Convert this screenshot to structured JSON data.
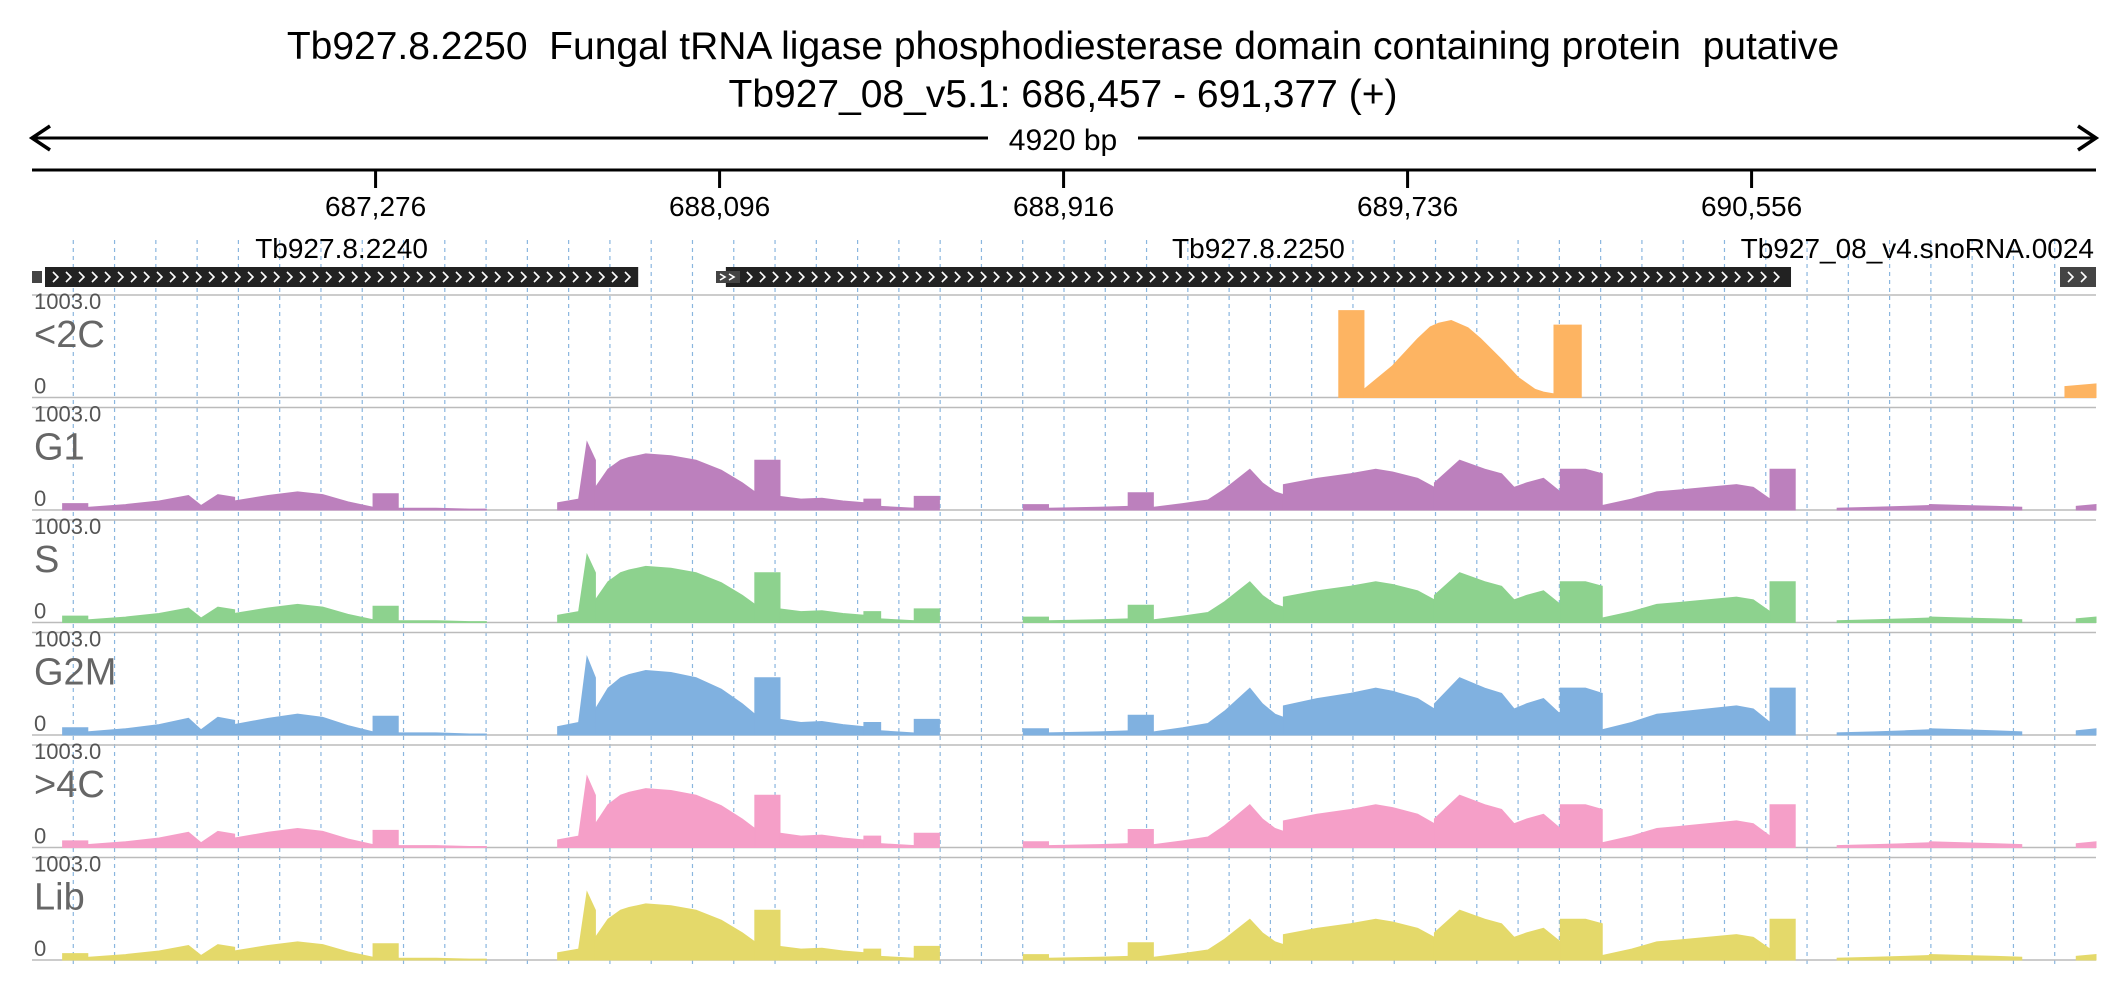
{
  "header": {
    "title": "Tb927.8.2250  Fungal tRNA ligase phosphodiesterase domain containing protein  putative",
    "location": "Tb927_08_v5.1: 686,457 - 691,377 (+)"
  },
  "ruler": {
    "span_label": "4920 bp",
    "ticks": [
      {
        "position": 687276,
        "label": "687,276"
      },
      {
        "position": 688096,
        "label": "688,096"
      },
      {
        "position": 688916,
        "label": "688,916"
      },
      {
        "position": 689736,
        "label": "689,736"
      },
      {
        "position": 690556,
        "label": "690,556"
      }
    ]
  },
  "genes": [
    {
      "name": "Tb927.8.2240",
      "start": 686486,
      "end": 687902,
      "strand": "+",
      "color": "#222222"
    },
    {
      "name": "Tb927.8.2250",
      "start": 688111,
      "end": 690650,
      "strand": "+",
      "color": "#222222"
    },
    {
      "name": "Tb927_08_v4.snoRNA.0024",
      "start": 691303,
      "end": 691377,
      "strand": "+",
      "color": "#444444"
    }
  ],
  "colors": {
    "grid": "#8ab6df",
    "track_border": "#bbbbbb",
    "axis_text": "#555555",
    "overflow_marker": "#8b2232"
  },
  "chart_data": {
    "type": "area",
    "region": {
      "chrom": "Tb927_08_v5.1",
      "start": 686457,
      "end": 691377
    },
    "ylim": [
      0,
      1003.0
    ],
    "ymax_label": "1003.0",
    "ymin_label": "0",
    "series": [
      {
        "name": "<2C",
        "color": "#fdb462",
        "segments": [
          {
            "x": [
              689572,
              689632
            ],
            "y": [
              955,
              955
            ]
          },
          {
            "x": [
              689632,
              689700,
              689760,
              689790,
              689810,
              689840,
              689880,
              689910,
              689960,
              690000,
              690040,
              690060,
              690085
            ],
            "y": [
              90,
              350,
              650,
              780,
              820,
              850,
              770,
              650,
              420,
              220,
              90,
              60,
              40
            ]
          },
          {
            "x": [
              690085,
              690150
            ],
            "y": [
              800,
              800
            ]
          },
          {
            "x": [
              691300,
              691377
            ],
            "y": [
              120,
              150
            ]
          }
        ]
      },
      {
        "name": "G1",
        "color": "#bc80bd",
        "segments": [
          {
            "x": [
              686630,
              686680
            ],
            "y": [
              50,
              50
            ]
          },
          {
            "x": [
              686680,
              686760,
              686840,
              686880
            ],
            "y": [
              30,
              60,
              90,
              180
            ]
          },
          {
            "x": [
              686880,
              686910,
              686950
            ],
            "y": [
              20,
              40,
              190
            ]
          },
          {
            "x": [
              686950,
              687050,
              687110,
              687160,
              687240
            ],
            "y": [
              90,
              170,
              200,
              160,
              40
            ]
          },
          {
            "x": [
              687300,
              687360
            ],
            "y": [
              190,
              190
            ]
          },
          {
            "x": [
              687360,
              687420,
              687480
            ],
            "y": [
              10,
              10,
              10
            ]
          },
          {
            "x": [
              687520,
              687570
            ],
            "y": [
              5,
              5
            ]
          },
          {
            "x": [
              687510,
              687520,
              687570
            ],
            "y": [
              5,
              5,
              5
            ]
          },
          {
            "x": [
              687510,
              687585
            ],
            "y": [
              5,
              5
            ]
          },
          {
            "x": [
              687510,
              687520
            ],
            "y": [
              5,
              5
            ]
          },
          {
            "x": [
              687510,
              687585
            ],
            "y": [
              5,
              5
            ]
          },
          {
            "x": [
              687510,
              687600
            ],
            "y": [
              5,
              5
            ]
          },
          {
            "x": [
              687510,
              687600
            ],
            "y": [
              5,
              5
            ]
          },
          {
            "x": [
              687520,
              687600
            ],
            "y": [
              5,
              5
            ]
          },
          {
            "x": [
              687510,
              687600
            ],
            "y": [
              5,
              5
            ]
          },
          {
            "x": [
              687510,
              687600
            ],
            "y": [
              5,
              5
            ]
          },
          {
            "x": [
              687520,
              687600
            ],
            "y": [
              5,
              5
            ]
          },
          {
            "x": [
              687520,
              687600
            ],
            "y": [
              5,
              5
            ]
          },
          {
            "x": [
              687520,
              687600
            ],
            "y": [
              5,
              5
            ]
          },
          {
            "x": [
              687520,
              687600
            ],
            "y": [
              5,
              5
            ]
          }
        ]
      },
      {
        "name": "S",
        "color": "#8dd28e",
        "segments": []
      },
      {
        "name": "G2M",
        "color": "#80b1e0",
        "segments": []
      },
      {
        "name": ">4C",
        "color": "#f59fc8",
        "segments": []
      },
      {
        "name": "Lib",
        "color": "#e4d96a",
        "segments": []
      }
    ]
  }
}
